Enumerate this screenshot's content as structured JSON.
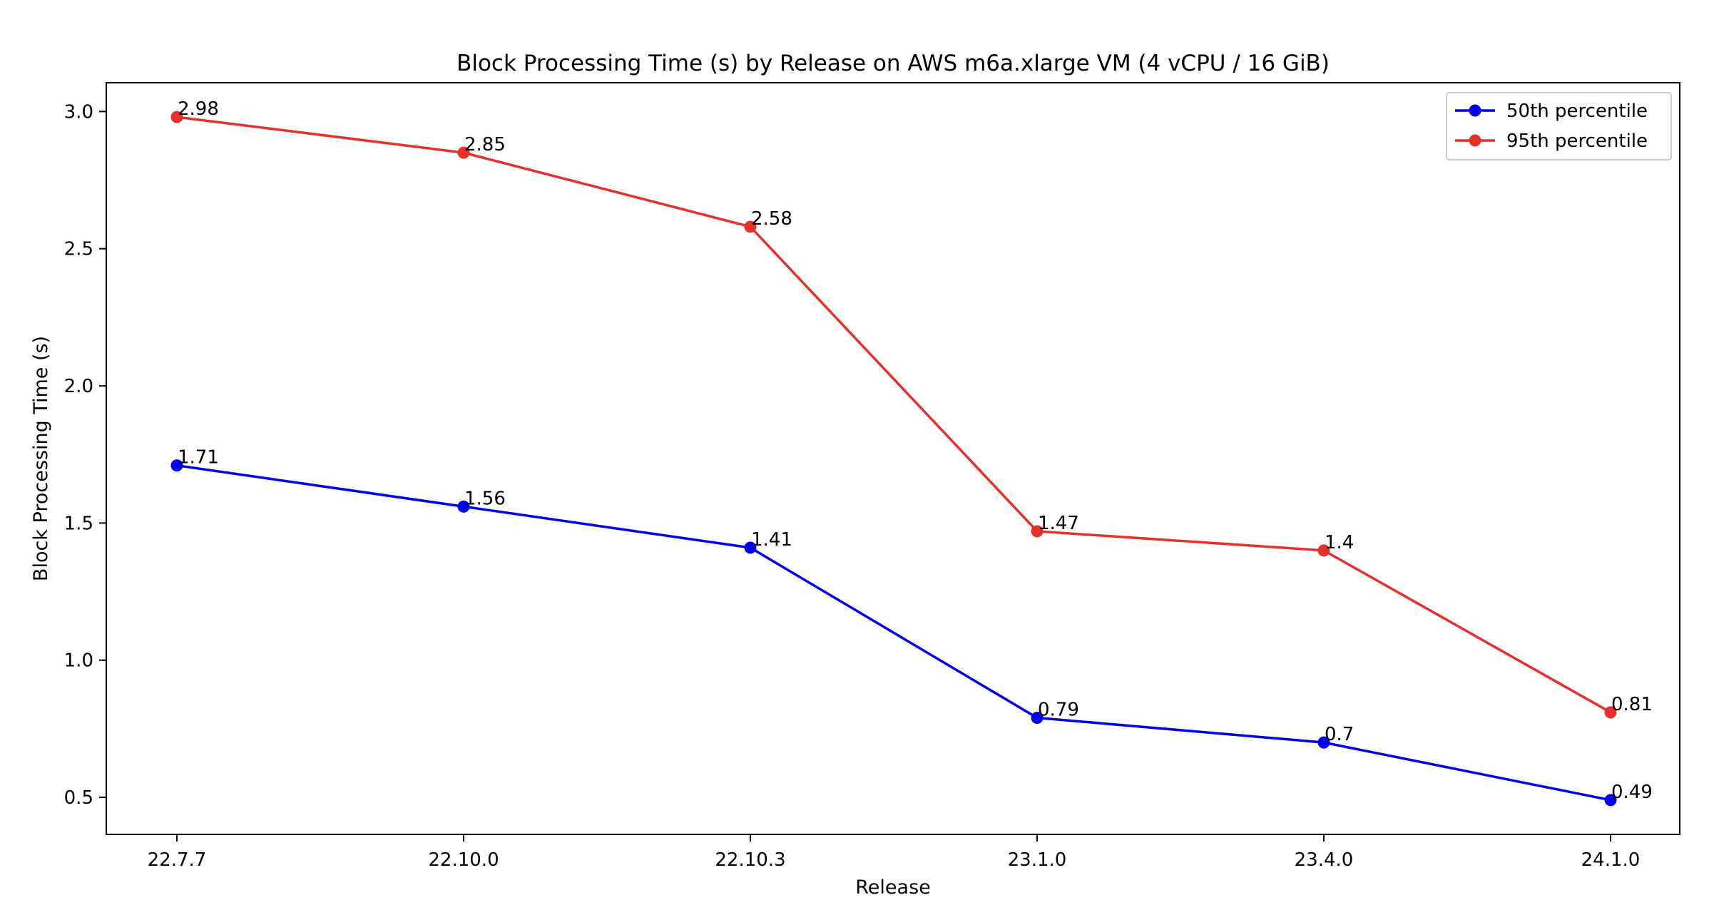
{
  "chart_data": {
    "type": "line",
    "title": "Block Processing Time (s) by Release on AWS m6a.xlarge VM (4 vCPU / 16 GiB)",
    "xlabel": "Release",
    "ylabel": "Block Processing Time (s)",
    "categories": [
      "22.7.7",
      "22.10.0",
      "22.10.3",
      "23.1.0",
      "23.4.0",
      "24.1.0"
    ],
    "ylim": [
      0.365,
      3.105
    ],
    "yticks": [
      0.5,
      1.0,
      1.5,
      2.0,
      2.5,
      3.0
    ],
    "ytick_labels": [
      "0.5",
      "1.0",
      "1.5",
      "2.0",
      "2.5",
      "3.0"
    ],
    "grid": false,
    "legend_position": "top-right",
    "series": [
      {
        "name": "50th percentile",
        "color": "#0000ee",
        "values": [
          1.71,
          1.56,
          1.41,
          0.79,
          0.7,
          0.49
        ],
        "labels": [
          "1.71",
          "1.56",
          "1.41",
          "0.79",
          "0.7",
          "0.49"
        ]
      },
      {
        "name": "95th percentile",
        "color": "#e8302a",
        "values": [
          2.98,
          2.85,
          2.58,
          1.47,
          1.4,
          0.81
        ],
        "labels": [
          "2.98",
          "2.85",
          "2.58",
          "1.47",
          "1.4",
          "0.81"
        ]
      }
    ]
  }
}
